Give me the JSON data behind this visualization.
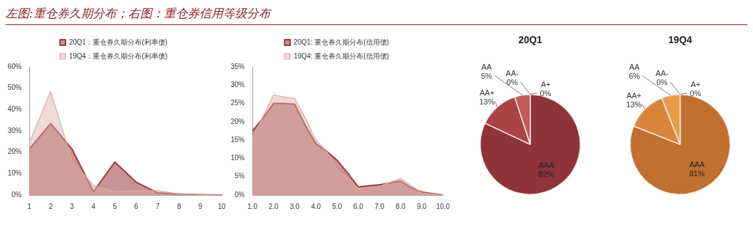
{
  "chart_data": [
    {
      "type": "area",
      "title": "左图:重仓券久期分布；右图：重仓券信用等级分布",
      "x": [
        1,
        2,
        3,
        4,
        5,
        6,
        7,
        8,
        9,
        10
      ],
      "series": [
        {
          "name": "20Q1：重仓券久期分布(利率债)",
          "color": "#9b3b3b",
          "values": [
            21.5,
            33.5,
            21.5,
            1.5,
            15.5,
            6,
            1,
            0.5,
            0.2,
            0
          ]
        },
        {
          "name": "19Q4：重仓券久期分布(利率债)",
          "color": "#d9aaa4",
          "values": [
            24.5,
            48.5,
            16,
            4.5,
            1.5,
            2,
            2,
            0.5,
            0.2,
            0
          ]
        }
      ],
      "xlim": [
        1,
        10
      ],
      "xticks": [
        1,
        2,
        3,
        4,
        5,
        6,
        7,
        8,
        9,
        10
      ],
      "ylim": [
        0,
        60
      ],
      "yticks": [
        {
          "value": 0,
          "label": "0%"
        },
        {
          "value": 10,
          "label": "10%"
        },
        {
          "value": 20,
          "label": "20%"
        },
        {
          "value": 30,
          "label": "30%"
        },
        {
          "value": 40,
          "label": "40%"
        },
        {
          "value": 50,
          "label": "50%"
        },
        {
          "value": 60,
          "label": "60%"
        }
      ],
      "legend": "top",
      "grid": false
    },
    {
      "type": "area",
      "x": [
        1,
        1.5,
        2,
        2.5,
        3,
        3.5,
        4,
        4.5,
        5,
        5.5,
        6,
        6.5,
        7,
        7.5,
        8,
        8.5,
        9,
        9.5,
        10
      ],
      "series": [
        {
          "name": "20Q1: 重仓券久期分布(信用债)",
          "color": "#9b3b3b",
          "values": [
            17.5,
            21,
            25,
            25,
            24.8,
            19,
            14,
            12,
            9.5,
            6,
            2.2,
            2.5,
            2.8,
            3.3,
            3.8,
            2,
            0.8,
            0.4,
            0
          ]
        },
        {
          "name": "19Q4: 重仓券久期分布(信用债)",
          "color": "#d9aaa4",
          "values": [
            15.5,
            21.5,
            27.3,
            26.8,
            26.4,
            21,
            15,
            12,
            7,
            4.5,
            1.8,
            2,
            2.3,
            3.5,
            4.5,
            2.5,
            0.6,
            0.3,
            0
          ]
        }
      ],
      "xlim": [
        1,
        10
      ],
      "xticks": [
        {
          "value": 1,
          "label": "1.0"
        },
        {
          "value": 2,
          "label": "2.0"
        },
        {
          "value": 3,
          "label": "3.0"
        },
        {
          "value": 4,
          "label": "4.0"
        },
        {
          "value": 5,
          "label": "5.0"
        },
        {
          "value": 6,
          "label": "6.0"
        },
        {
          "value": 7,
          "label": "7.0"
        },
        {
          "value": 8,
          "label": "8.0"
        },
        {
          "value": 9,
          "label": "9.0"
        },
        {
          "value": 10,
          "label": "10.0"
        }
      ],
      "ylim": [
        0,
        35
      ],
      "yticks": [
        {
          "value": 0,
          "label": "0%"
        },
        {
          "value": 5,
          "label": "5%"
        },
        {
          "value": 10,
          "label": "10%"
        },
        {
          "value": 15,
          "label": "15%"
        },
        {
          "value": 20,
          "label": "20%"
        },
        {
          "value": 25,
          "label": "25%"
        },
        {
          "value": 30,
          "label": "30%"
        },
        {
          "value": 35,
          "label": "35%"
        }
      ],
      "legend": "top",
      "grid": false
    },
    {
      "type": "pie",
      "title": "20Q1",
      "categories": [
        "AAA",
        "AA+",
        "AA",
        "AA-",
        "A+"
      ],
      "values": [
        82,
        13,
        5,
        0,
        0
      ],
      "colors": [
        "#8e3338",
        "#a94446",
        "#c25a5a",
        "#d87474",
        "#e89898"
      ],
      "value_labels": [
        "82%",
        "13%",
        "5%",
        "0%",
        "0%"
      ]
    },
    {
      "type": "pie",
      "title": "19Q4",
      "categories": [
        "AAA",
        "AA+",
        "AA",
        "AA-",
        "A+"
      ],
      "values": [
        81,
        13,
        6,
        0,
        0
      ],
      "colors": [
        "#c07030",
        "#d8873a",
        "#e89c4c",
        "#f0b070",
        "#f4c48a"
      ],
      "value_labels": [
        "81%",
        "13%",
        "6%",
        "0%",
        "0%"
      ]
    }
  ]
}
